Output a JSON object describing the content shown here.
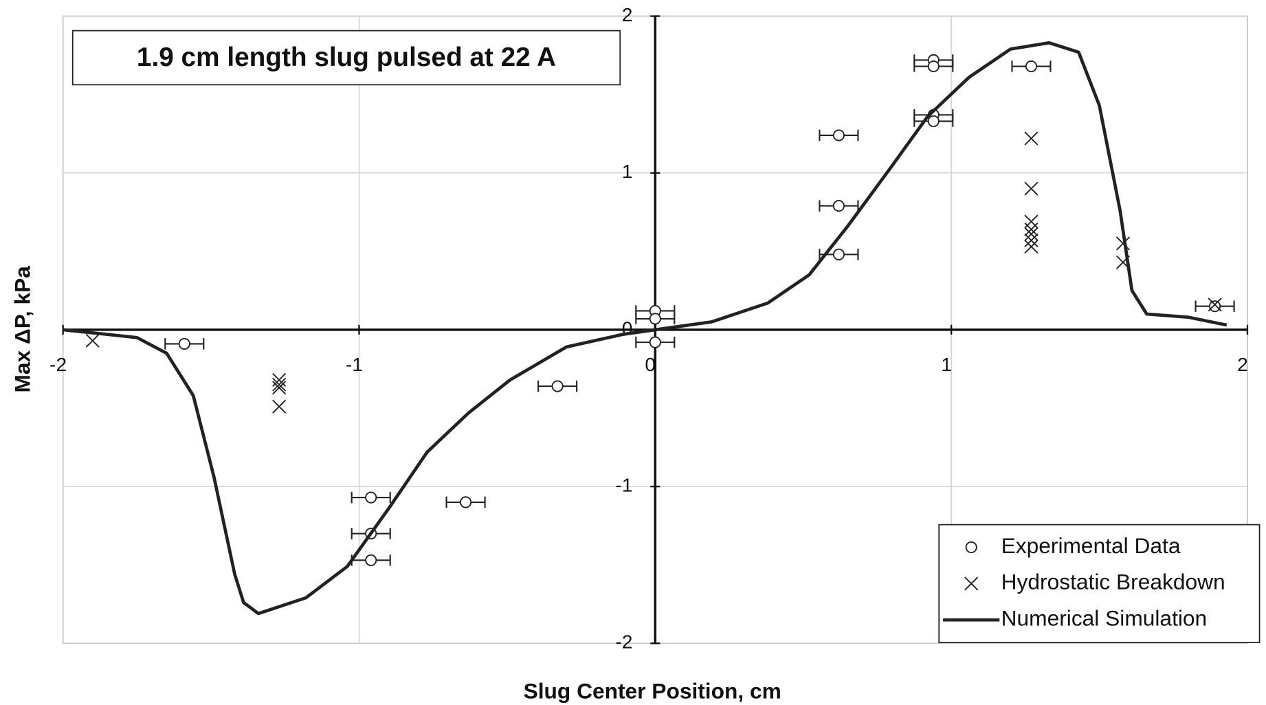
{
  "chart_data": {
    "type": "scatter",
    "annotation": "1.9 cm length slug pulsed at 22 A",
    "xlabel": "Slug Center Position, cm",
    "ylabel": "Max ΔP, kPa",
    "xlim": [
      -2,
      2
    ],
    "ylim": [
      -2,
      2
    ],
    "xticks": [
      -2,
      -1,
      0,
      1,
      2
    ],
    "yticks": [
      -2,
      -1,
      0,
      1,
      2
    ],
    "grid": true,
    "legend": "lower right",
    "series": [
      {
        "name": "Experimental Data",
        "type": "scatter",
        "marker": "circle",
        "color": "#222222",
        "xerr": 0.065,
        "x": [
          -1.59,
          -0.33,
          -0.96,
          -0.96,
          -0.96,
          -0.64,
          0,
          0,
          0,
          0.62,
          0.62,
          0.62,
          0.94,
          0.94,
          0.94,
          0.94,
          1.27,
          1.89
        ],
        "values": [
          -0.09,
          -0.36,
          -1.07,
          -1.3,
          -1.47,
          -1.1,
          0.12,
          0.07,
          -0.08,
          0.48,
          0.79,
          1.24,
          1.37,
          1.33,
          1.72,
          1.68,
          1.68,
          0.15
        ]
      },
      {
        "name": "Hydrostatic Breakdown",
        "type": "scatter",
        "marker": "x",
        "color": "#222222",
        "x": [
          -1.9,
          -1.27,
          -1.27,
          -1.27,
          -1.27,
          1.27,
          1.27,
          1.27,
          1.27,
          1.27,
          1.27,
          1.27,
          1.58,
          1.58,
          1.89
        ],
        "values": [
          -0.07,
          -0.32,
          -0.35,
          -0.37,
          -0.49,
          1.22,
          0.9,
          0.69,
          0.64,
          0.61,
          0.57,
          0.53,
          0.55,
          0.43,
          0.16
        ]
      },
      {
        "name": "Numerical Simulation",
        "type": "line",
        "color": "#222222",
        "x": [
          -2,
          -1.85,
          -1.75,
          -1.65,
          -1.56,
          -1.49,
          -1.42,
          -1.39,
          -1.34,
          -1.18,
          -1.04,
          -0.9,
          -0.77,
          -0.63,
          -0.49,
          -0.3,
          -0.11,
          0,
          0.19,
          0.38,
          0.52,
          0.65,
          0.79,
          0.92,
          1.06,
          1.2,
          1.33,
          1.43,
          1.5,
          1.57,
          1.61,
          1.66,
          1.8,
          1.93
        ],
        "values": [
          0,
          -0.03,
          -0.05,
          -0.15,
          -0.42,
          -0.94,
          -1.56,
          -1.74,
          -1.81,
          -1.71,
          -1.51,
          -1.14,
          -0.78,
          -0.53,
          -0.32,
          -0.11,
          -0.03,
          0,
          0.05,
          0.17,
          0.35,
          0.66,
          1.02,
          1.36,
          1.61,
          1.79,
          1.83,
          1.77,
          1.43,
          0.76,
          0.25,
          0.1,
          0.08,
          0.03
        ]
      }
    ]
  }
}
